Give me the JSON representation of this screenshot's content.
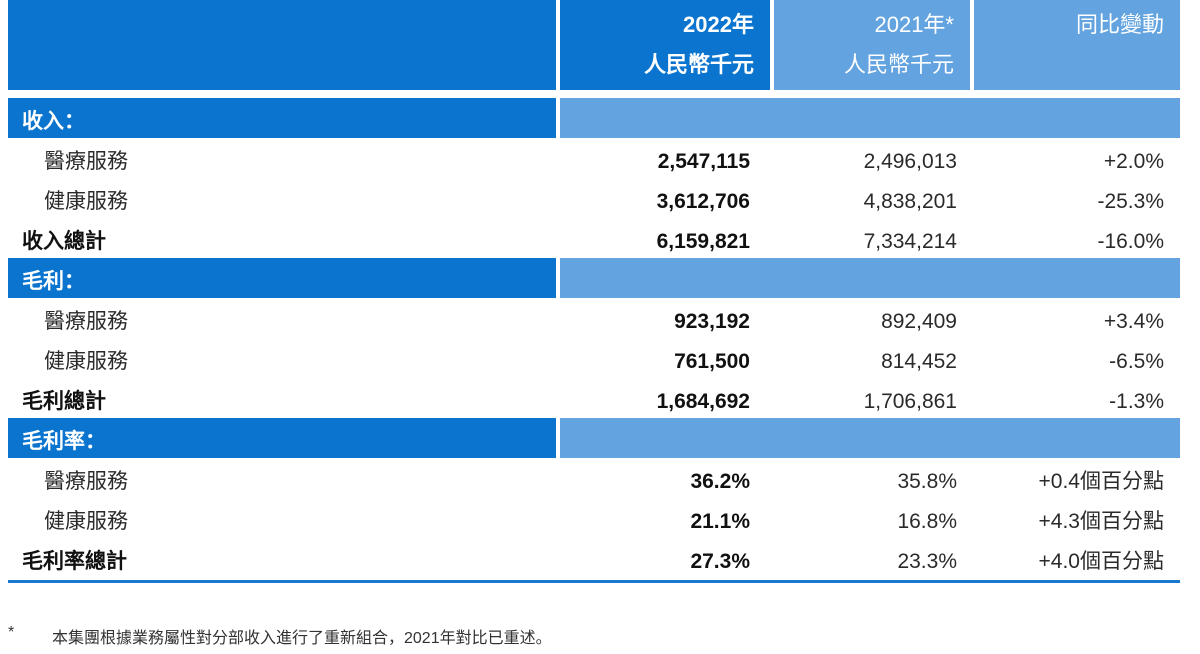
{
  "header": {
    "col2022_year": "2022年",
    "col2022_unit": "人民幣千元",
    "col2021_year": "2021年*",
    "col2021_unit": "人民幣千元",
    "col_change": "同比變動"
  },
  "sections": [
    {
      "title": "收入：",
      "rows": [
        {
          "label": "醫療服務",
          "v2022": "2,547,115",
          "v2021": "2,496,013",
          "change": "+2.0%"
        },
        {
          "label": "健康服務",
          "v2022": "3,612,706",
          "v2021": "4,838,201",
          "change": "-25.3%"
        }
      ],
      "total": {
        "label": "收入總計",
        "v2022": "6,159,821",
        "v2021": "7,334,214",
        "change": "-16.0%"
      }
    },
    {
      "title": "毛利：",
      "rows": [
        {
          "label": "醫療服務",
          "v2022": "923,192",
          "v2021": "892,409",
          "change": "+3.4%"
        },
        {
          "label": "健康服務",
          "v2022": "761,500",
          "v2021": "814,452",
          "change": "-6.5%"
        }
      ],
      "total": {
        "label": "毛利總計",
        "v2022": "1,684,692",
        "v2021": "1,706,861",
        "change": "-1.3%"
      }
    },
    {
      "title": "毛利率：",
      "rows": [
        {
          "label": "醫療服務",
          "v2022": "36.2%",
          "v2021": "35.8%",
          "change": "+0.4個百分點"
        },
        {
          "label": "健康服務",
          "v2022": "21.1%",
          "v2021": "16.8%",
          "change": "+4.3個百分點"
        }
      ],
      "total": {
        "label": "毛利率總計",
        "v2022": "27.3%",
        "v2021": "23.3%",
        "change": "+4.0個百分點"
      }
    }
  ],
  "footnote": {
    "mark": "*",
    "text": "本集團根據業務屬性對分部收入進行了重新組合，2021年對比已重述。"
  },
  "colors": {
    "dark_blue": "#0a74cf",
    "light_blue": "#63a4e0"
  }
}
